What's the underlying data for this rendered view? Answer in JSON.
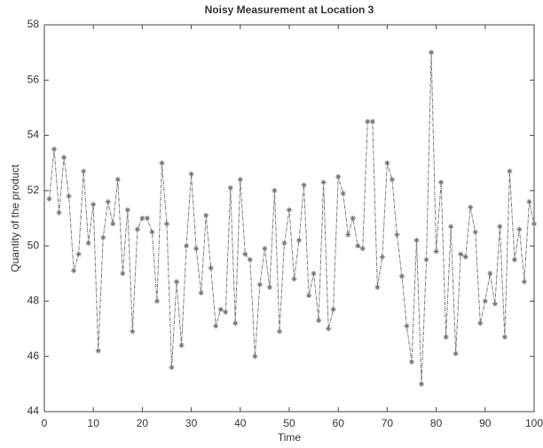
{
  "chart_data": {
    "type": "line",
    "title": "Noisy Measurement at Location 3",
    "x_label": "Time",
    "y_label": "Quantity of the product",
    "x": [
      1,
      2,
      3,
      4,
      5,
      6,
      7,
      8,
      9,
      10,
      11,
      12,
      13,
      14,
      15,
      16,
      17,
      18,
      19,
      20,
      21,
      22,
      23,
      24,
      25,
      26,
      27,
      28,
      29,
      30,
      31,
      32,
      33,
      34,
      35,
      36,
      37,
      38,
      39,
      40,
      41,
      42,
      43,
      44,
      45,
      46,
      47,
      48,
      49,
      50,
      51,
      52,
      53,
      54,
      55,
      56,
      57,
      58,
      59,
      60,
      61,
      62,
      63,
      64,
      65,
      66,
      67,
      68,
      69,
      70,
      71,
      72,
      73,
      74,
      75,
      76,
      77,
      78,
      79,
      80,
      81,
      82,
      83,
      84,
      85,
      86,
      87,
      88,
      89,
      90,
      91,
      92,
      93,
      94,
      95,
      96,
      97,
      98,
      99,
      100
    ],
    "series": [
      {
        "color": "#777777",
        "values": [
          51.7,
          53.5,
          51.2,
          53.2,
          51.8,
          49.1,
          49.7,
          52.7,
          50.1,
          51.5,
          46.2,
          50.3,
          51.6,
          50.8,
          52.4,
          49.0,
          51.3,
          46.9,
          50.6,
          51.0,
          51.0,
          50.5,
          48.0,
          53.0,
          50.8,
          45.6,
          48.7,
          46.4,
          50.0,
          52.6,
          49.9,
          48.3,
          51.1,
          49.2,
          47.1,
          47.7,
          47.6,
          52.1,
          47.2,
          52.4,
          49.7,
          49.5,
          46.0,
          48.6,
          49.9,
          48.5,
          52.0,
          46.9,
          50.1,
          51.3,
          48.8,
          50.2,
          52.2,
          48.2,
          49.0,
          47.3,
          52.3,
          47.0,
          47.7,
          52.5,
          51.9,
          50.4,
          51.0,
          50.0,
          49.9,
          54.5,
          54.5,
          48.5,
          49.6,
          53.0,
          52.4,
          50.4,
          48.9,
          47.1,
          45.8,
          50.2,
          45.0,
          49.5,
          57.0,
          49.8,
          52.3,
          46.7,
          50.7,
          46.1,
          49.7,
          49.6,
          51.4,
          50.5,
          47.2,
          48.0,
          49.0,
          47.9,
          50.7,
          46.7,
          52.7,
          49.5,
          50.6,
          48.7,
          51.6,
          50.8
        ]
      }
    ],
    "xlim": [
      0,
      100
    ],
    "xticks": [
      0,
      10,
      20,
      30,
      40,
      50,
      60,
      70,
      80,
      90,
      100
    ],
    "ylim": [
      44,
      58
    ],
    "yticks": [
      44,
      46,
      48,
      50,
      52,
      54,
      56,
      58
    ]
  }
}
